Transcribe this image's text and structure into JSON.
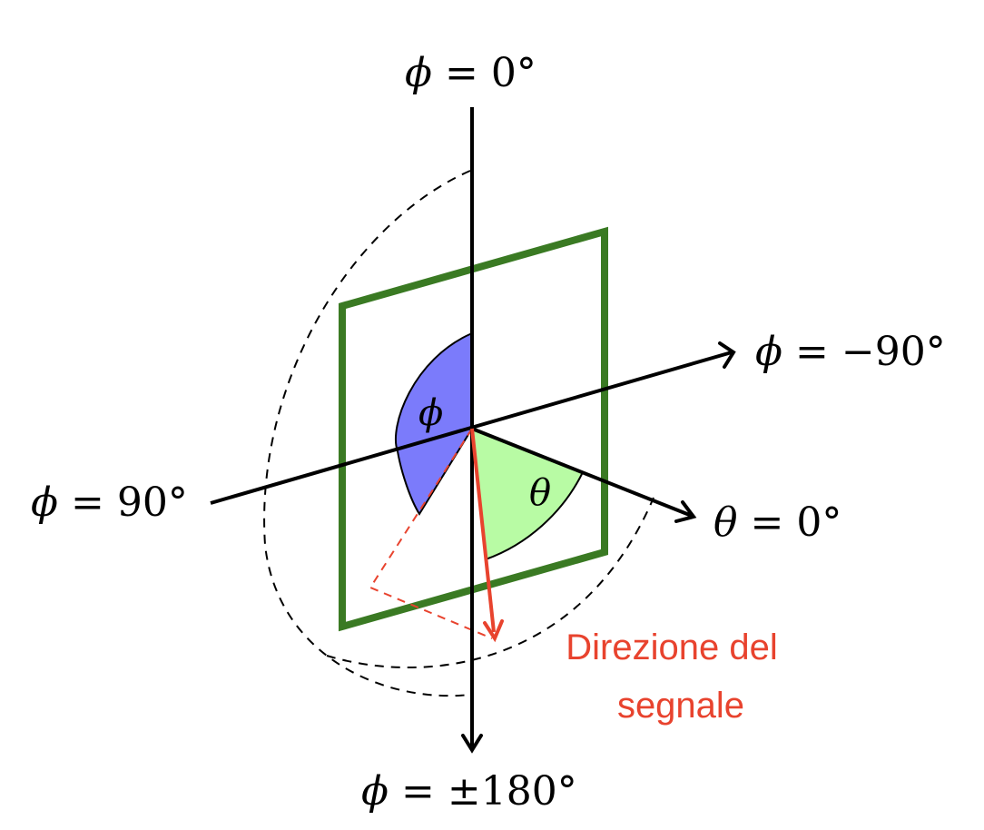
{
  "labels": {
    "top": {
      "symbol": "ϕ",
      "rest": " = 0°"
    },
    "right": {
      "symbol": "ϕ",
      "rest": " = −90°"
    },
    "left": {
      "symbol": "ϕ",
      "rest": " = 90°"
    },
    "bottom": {
      "symbol": "ϕ",
      "rest": " = ±180°"
    },
    "theta_axis": {
      "symbol": "θ",
      "rest": " = 0°"
    }
  },
  "angle_labels": {
    "phi": "ϕ",
    "theta": "θ"
  },
  "signal": {
    "line1": "Direzione del",
    "line2": "segnale"
  },
  "colors": {
    "frame": "#3a7a23",
    "phi_sector": "#7b7bfb",
    "theta_sector": "#b8fba4",
    "signal": "#e8432e",
    "axes": "#000000"
  }
}
